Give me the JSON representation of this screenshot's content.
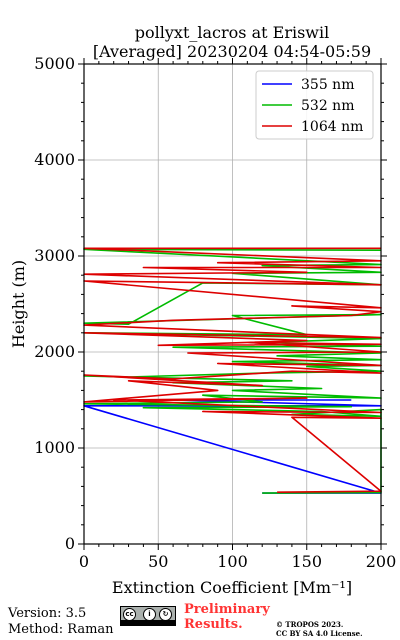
{
  "chart_data": {
    "type": "line",
    "title": "pollyxt_lacros at Eriswil",
    "subtitle": "[Averaged] 20230204 04:54-05:59",
    "xlabel": "Extinction Coefficient [Mm⁻¹]",
    "ylabel": "Height (m)",
    "xlim": [
      0,
      200
    ],
    "ylim": [
      0,
      5000
    ],
    "x_ticks": [
      "0",
      "50",
      "100",
      "150",
      "200"
    ],
    "y_ticks": [
      "0",
      "1000",
      "2000",
      "3000",
      "4000",
      "5000"
    ],
    "grid": true,
    "legend_position": "top-right",
    "series": [
      {
        "name": "355 nm",
        "color": "#0000ff",
        "points": [
          [
            120,
            530
          ],
          [
            200,
            530
          ],
          [
            0,
            1440
          ],
          [
            200,
            1440
          ],
          [
            60,
            1500
          ],
          [
            180,
            1500
          ]
        ]
      },
      {
        "name": "532 nm",
        "color": "#00bb00",
        "points": [
          [
            120,
            530
          ],
          [
            200,
            535
          ],
          [
            200,
            1400
          ],
          [
            140,
            1350
          ],
          [
            200,
            1330
          ],
          [
            160,
            1380
          ],
          [
            40,
            1420
          ],
          [
            180,
            1430
          ],
          [
            0,
            1460
          ],
          [
            120,
            1480
          ],
          [
            80,
            1550
          ],
          [
            200,
            1520
          ],
          [
            100,
            1600
          ],
          [
            160,
            1620
          ],
          [
            60,
            1680
          ],
          [
            140,
            1700
          ],
          [
            0,
            1750
          ],
          [
            30,
            1740
          ],
          [
            120,
            1780
          ],
          [
            200,
            1800
          ],
          [
            150,
            1850
          ],
          [
            200,
            1860
          ],
          [
            100,
            1900
          ],
          [
            200,
            1920
          ],
          [
            130,
            1960
          ],
          [
            200,
            1990
          ],
          [
            60,
            2050
          ],
          [
            200,
            2060
          ],
          [
            120,
            2100
          ],
          [
            200,
            2140
          ],
          [
            0,
            2200
          ],
          [
            150,
            2180
          ],
          [
            100,
            2380
          ],
          [
            200,
            2390
          ],
          [
            0,
            2300
          ],
          [
            30,
            2290
          ],
          [
            80,
            2720
          ],
          [
            200,
            2700
          ],
          [
            100,
            2820
          ],
          [
            200,
            2830
          ],
          [
            120,
            2900
          ],
          [
            200,
            2910
          ],
          [
            0,
            3070
          ],
          [
            200,
            3060
          ]
        ]
      },
      {
        "name": "1064 nm",
        "color": "#dd0000",
        "points": [
          [
            130,
            540
          ],
          [
            200,
            550
          ],
          [
            140,
            1320
          ],
          [
            200,
            1310
          ],
          [
            80,
            1380
          ],
          [
            200,
            1370
          ],
          [
            20,
            1500
          ],
          [
            150,
            1520
          ],
          [
            0,
            1480
          ],
          [
            90,
            1600
          ],
          [
            30,
            1700
          ],
          [
            120,
            1650
          ],
          [
            0,
            1760
          ],
          [
            60,
            1720
          ],
          [
            140,
            1800
          ],
          [
            200,
            1780
          ],
          [
            90,
            1880
          ],
          [
            200,
            1860
          ],
          [
            70,
            1990
          ],
          [
            200,
            2000
          ],
          [
            110,
            2100
          ],
          [
            200,
            2080
          ],
          [
            50,
            2070
          ],
          [
            150,
            2120
          ],
          [
            0,
            2200
          ],
          [
            200,
            2150
          ],
          [
            0,
            2280
          ],
          [
            60,
            2330
          ],
          [
            180,
            2380
          ],
          [
            200,
            2420
          ],
          [
            140,
            2480
          ],
          [
            200,
            2460
          ],
          [
            0,
            2740
          ],
          [
            200,
            2700
          ],
          [
            0,
            2810
          ],
          [
            150,
            2830
          ],
          [
            40,
            2880
          ],
          [
            200,
            2880
          ],
          [
            90,
            2930
          ],
          [
            200,
            2950
          ],
          [
            0,
            3080
          ],
          [
            200,
            3080
          ]
        ]
      }
    ]
  },
  "footer": {
    "version": "Version: 3.5",
    "method": "Method: Raman",
    "preliminary_line1": "Preliminary",
    "preliminary_line2": "Results.",
    "copyright": "© TROPOS 2023.",
    "license": "CC BY SA 4.0 License.",
    "cc_icons": [
      "cc-icon",
      "by-icon",
      "sa-icon"
    ]
  }
}
